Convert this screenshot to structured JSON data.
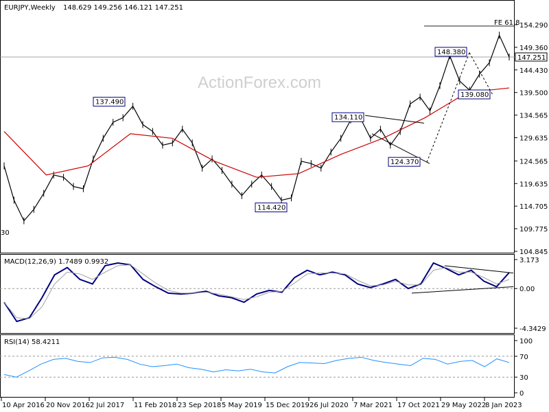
{
  "header": {
    "symbol": "EURJPY,Weekly",
    "ohlc": "148.629 149.256 146.121 147.251"
  },
  "watermark": "ActionForex.com",
  "colors": {
    "background": "#ffffff",
    "price_bars": "#000000",
    "ma_line": "#cc0000",
    "macd_line": "#000080",
    "macd_signal": "#a0a0a0",
    "rsi_line": "#1e90ff",
    "annotation_border": "#000080",
    "annotation_text": "#000080"
  },
  "chart_data": [
    {
      "type": "line",
      "title": "EURJPY,Weekly",
      "x_tick_labels": [
        "10 Apr 2016",
        "20 Nov 2016",
        "2 Jul 2017",
        "11 Feb 2018",
        "23 Sep 2018",
        "5 May 2019",
        "15 Dec 2019",
        "26 Jul 2020",
        "7 Mar 2021",
        "17 Oct 2021",
        "29 May 2022",
        "8 Jan 2023"
      ],
      "y_tick_labels": [
        "154.290",
        "149.360",
        "144.430",
        "139.500",
        "134.565",
        "129.635",
        "124.565",
        "119.635",
        "114.705",
        "109.775",
        "104.845"
      ],
      "ylim": [
        104.845,
        154.29
      ],
      "current_price": "147.251",
      "fe_level": {
        "label": "FE 61.8",
        "value": 154.0
      },
      "series": [
        {
          "name": "EURJPY",
          "points": [
            {
              "x": "10 Apr 2016",
              "y": 123.5
            },
            {
              "x": "Jun 2016",
              "y": 116.0
            },
            {
              "x": "Jul 2016",
              "y": 111.5
            },
            {
              "x": "Sep 2016",
              "y": 114.0
            },
            {
              "x": "Oct 2016",
              "y": 117.5
            },
            {
              "x": "20 Nov 2016",
              "y": 121.5
            },
            {
              "x": "Jan 2017",
              "y": 121.0
            },
            {
              "x": "Mar 2017",
              "y": 119.0
            },
            {
              "x": "Apr 2017",
              "y": 118.5
            },
            {
              "x": "2 Jul 2017",
              "y": 125.0
            },
            {
              "x": "Aug 2017",
              "y": 129.5
            },
            {
              "x": "Oct 2017",
              "y": 133.0
            },
            {
              "x": "Dec 2017",
              "y": 134.0
            },
            {
              "x": "Jan 2018",
              "y": 136.5
            },
            {
              "x": "11 Feb 2018",
              "y": 132.5
            },
            {
              "x": "Apr 2018",
              "y": 131.0
            },
            {
              "x": "Jun 2018",
              "y": 128.0
            },
            {
              "x": "Aug 2018",
              "y": 128.5
            },
            {
              "x": "23 Sep 2018",
              "y": 131.5
            },
            {
              "x": "Nov 2018",
              "y": 128.5
            },
            {
              "x": "Jan 2019",
              "y": 123.0
            },
            {
              "x": "Mar 2019",
              "y": 125.0
            },
            {
              "x": "5 May 2019",
              "y": 122.5
            },
            {
              "x": "Jul 2019",
              "y": 119.5
            },
            {
              "x": "Aug 2019",
              "y": 117.0
            },
            {
              "x": "Oct 2019",
              "y": 119.5
            },
            {
              "x": "15 Dec 2019",
              "y": 121.5
            },
            {
              "x": "Feb 2020",
              "y": 119.0
            },
            {
              "x": "Mar 2020",
              "y": 116.0
            },
            {
              "x": "May 2020",
              "y": 116.5
            },
            {
              "x": "26 Jul 2020",
              "y": 124.5
            },
            {
              "x": "Sep 2020",
              "y": 124.0
            },
            {
              "x": "Nov 2020",
              "y": 123.0
            },
            {
              "x": "Jan 2021",
              "y": 126.5
            },
            {
              "x": "7 Mar 2021",
              "y": 129.5
            },
            {
              "x": "May 2021",
              "y": 133.5
            },
            {
              "x": "Jun 2021",
              "y": 133.8
            },
            {
              "x": "Aug 2021",
              "y": 129.5
            },
            {
              "x": "17 Oct 2021",
              "y": 131.5
            },
            {
              "x": "Dec 2021",
              "y": 128.0
            },
            {
              "x": "Feb 2022",
              "y": 131.0
            },
            {
              "x": "Apr 2022",
              "y": 137.0
            },
            {
              "x": "29 May 2022",
              "y": 138.5
            },
            {
              "x": "Jul 2022",
              "y": 135.5
            },
            {
              "x": "Sep 2022",
              "y": 141.0
            },
            {
              "x": "Oct 2022",
              "y": 147.5
            },
            {
              "x": "Dec 2022",
              "y": 142.0
            },
            {
              "x": "8 Jan 2023",
              "y": 140.0
            },
            {
              "x": "Feb 2023",
              "y": 143.5
            },
            {
              "x": "Apr 2023",
              "y": 146.0
            },
            {
              "x": "Jun 2023",
              "y": 152.0
            },
            {
              "x": "Jun 2023 close",
              "y": 147.251
            }
          ]
        },
        {
          "name": "moving average",
          "points": [
            {
              "x": "10 Apr 2016",
              "y": 131.0
            },
            {
              "x": "Oct 2016",
              "y": 121.5
            },
            {
              "x": "2 Jul 2017",
              "y": 123.5
            },
            {
              "x": "11 Feb 2018",
              "y": 130.5
            },
            {
              "x": "23 Sep 2018",
              "y": 129.5
            },
            {
              "x": "5 May 2019",
              "y": 124.5
            },
            {
              "x": "15 Dec 2019",
              "y": 121.0
            },
            {
              "x": "26 Jul 2020",
              "y": 121.8
            },
            {
              "x": "7 Mar 2021",
              "y": 126.0
            },
            {
              "x": "17 Oct 2021",
              "y": 129.5
            },
            {
              "x": "29 May 2022",
              "y": 134.0
            },
            {
              "x": "8 Jan 2023",
              "y": 139.5
            },
            {
              "x": "Jun 2023",
              "y": 140.5
            }
          ]
        }
      ],
      "annotations": [
        {
          "label": "137.490",
          "x": "Jan 2018",
          "y": 137.49
        },
        {
          "label": "114.420",
          "x": "Apr 2020",
          "y": 114.42
        },
        {
          "label": "134.110",
          "x": "May 2021",
          "y": 134.11
        },
        {
          "label": "124.370",
          "x": "Dec 2021",
          "y": 124.37
        },
        {
          "label": "148.380",
          "x": "Oct 2022",
          "y": 148.38
        },
        {
          "label": "139.080",
          "x": "8 Jan 2023",
          "y": 139.08
        }
      ],
      "left_edge_label": "30"
    },
    {
      "type": "line",
      "title": "MACD(12,26,9) 1.7489 0.9932",
      "y_tick_labels": [
        "3.173",
        "0.00",
        "-4.3429"
      ],
      "ylim": [
        -4.3429,
        3.173
      ],
      "series": [
        {
          "name": "MACD",
          "values": [
            -1.5,
            -3.6,
            -3.2,
            -1.0,
            1.5,
            2.3,
            1.0,
            0.5,
            2.5,
            2.8,
            2.6,
            1.0,
            0.2,
            -0.5,
            -0.6,
            -0.5,
            -0.3,
            -0.8,
            -1.0,
            -1.5,
            -0.6,
            -0.2,
            -0.4,
            1.2,
            2.0,
            1.5,
            1.8,
            1.5,
            0.5,
            0.1,
            0.5,
            1.0,
            0.0,
            0.5,
            2.8,
            2.2,
            1.5,
            2.0,
            0.8,
            0.2,
            1.7489
          ]
        },
        {
          "name": "Signal",
          "values": [
            -1.5,
            -3.2,
            -3.3,
            -2.0,
            0.5,
            1.8,
            1.6,
            1.0,
            1.8,
            2.5,
            2.6,
            1.6,
            0.6,
            -0.2,
            -0.5,
            -0.5,
            -0.4,
            -0.6,
            -0.9,
            -1.2,
            -0.9,
            -0.4,
            -0.3,
            0.6,
            1.6,
            1.7,
            1.7,
            1.6,
            0.9,
            0.3,
            0.4,
            0.8,
            0.4,
            0.4,
            2.0,
            2.3,
            1.8,
            1.8,
            1.2,
            0.5,
            0.9932
          ]
        }
      ]
    },
    {
      "type": "line",
      "title": "RSI(14) 58.4211",
      "y_tick_labels": [
        "100",
        "70",
        "30",
        "0"
      ],
      "ylim": [
        0,
        100
      ],
      "series": [
        {
          "name": "RSI",
          "values": [
            35,
            30,
            42,
            55,
            64,
            66,
            60,
            58,
            67,
            68,
            64,
            55,
            50,
            52,
            55,
            48,
            45,
            40,
            44,
            42,
            45,
            40,
            38,
            50,
            58,
            57,
            56,
            62,
            66,
            68,
            62,
            58,
            55,
            52,
            66,
            64,
            55,
            60,
            62,
            50,
            65,
            58
          ]
        }
      ]
    }
  ]
}
